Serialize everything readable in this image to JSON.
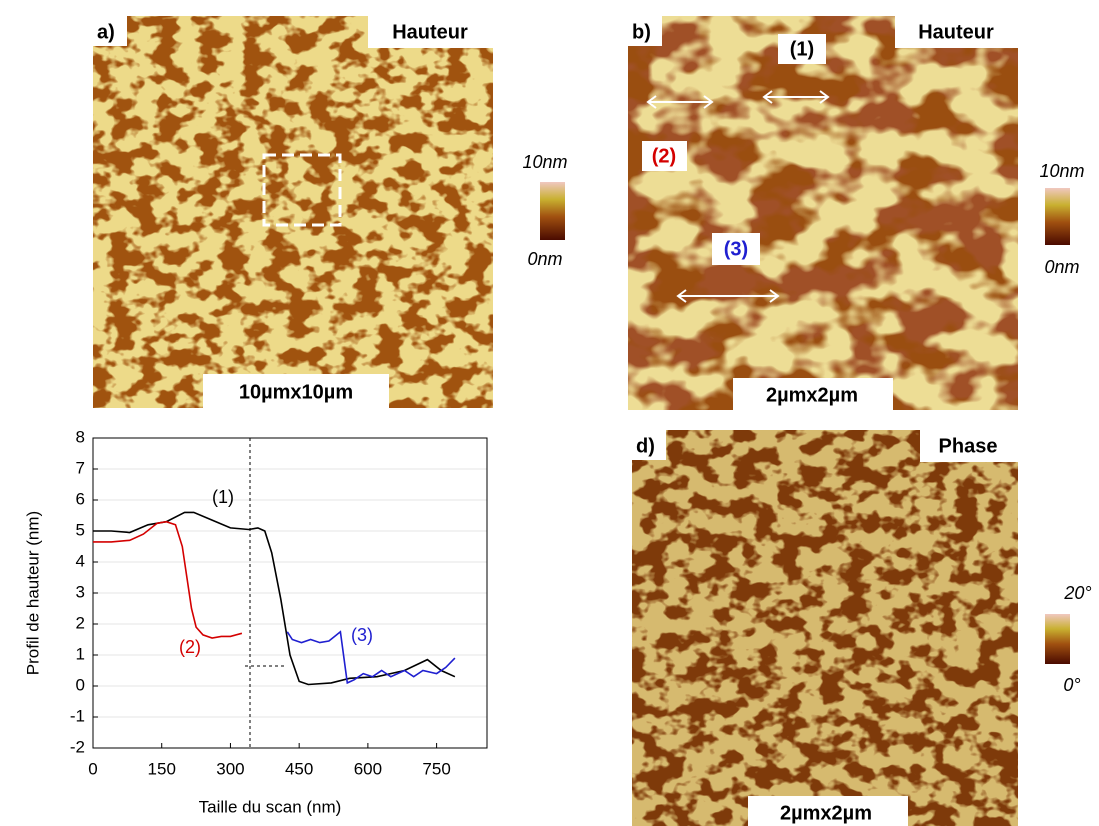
{
  "panels": {
    "a": {
      "label": "a)",
      "tag": "Hauteur",
      "scale": "10µmx10µm",
      "cbar_top": "10nm",
      "cbar_bottom": "0nm"
    },
    "b": {
      "label": "b)",
      "tag": "Hauteur",
      "scale": "2µmx2µm",
      "cbar_top": "10nm",
      "cbar_bottom": "0nm",
      "markers": [
        "(1)",
        "(2)",
        "(3)"
      ]
    },
    "d": {
      "label": "d)",
      "tag": "Phase",
      "scale": "2µmx2µm",
      "cbar_top": "20°",
      "cbar_bottom": "0°"
    }
  },
  "chart_data": {
    "type": "line",
    "x_label": "Taille du scan (nm)",
    "y_label": "Profil de hauteur (nm)",
    "xlim": [
      0,
      860
    ],
    "ylim": [
      -2,
      8
    ],
    "xticks": [
      0,
      150,
      300,
      450,
      600,
      750
    ],
    "yticks": [
      -2,
      -1,
      0,
      1,
      2,
      3,
      4,
      5,
      6,
      7,
      8
    ],
    "grid": true,
    "series": [
      {
        "label": "(1)",
        "color": "#000000",
        "x": [
          0,
          40,
          80,
          120,
          160,
          200,
          220,
          260,
          300,
          340,
          360,
          375,
          390,
          410,
          430,
          450,
          470,
          520,
          560,
          620,
          680,
          730,
          760,
          790
        ],
        "values": [
          5.0,
          5.0,
          4.95,
          5.2,
          5.3,
          5.6,
          5.6,
          5.35,
          5.1,
          5.05,
          5.1,
          5.0,
          4.3,
          2.8,
          1.0,
          0.15,
          0.05,
          0.1,
          0.25,
          0.3,
          0.5,
          0.85,
          0.5,
          0.3
        ]
      },
      {
        "label": "(2)",
        "color": "#d40000",
        "x": [
          0,
          40,
          80,
          110,
          140,
          160,
          180,
          195,
          205,
          215,
          225,
          240,
          260,
          280,
          300,
          325
        ],
        "values": [
          4.65,
          4.65,
          4.7,
          4.9,
          5.25,
          5.3,
          5.2,
          4.5,
          3.5,
          2.5,
          1.9,
          1.65,
          1.55,
          1.6,
          1.6,
          1.7
        ]
      },
      {
        "label": "(3)",
        "color": "#1f1fd0",
        "x": [
          424,
          435,
          455,
          475,
          495,
          515,
          540,
          555,
          570,
          590,
          610,
          630,
          650,
          680,
          700,
          720,
          750,
          770,
          790
        ],
        "values": [
          1.75,
          1.5,
          1.4,
          1.5,
          1.4,
          1.45,
          1.75,
          0.1,
          0.2,
          0.4,
          0.3,
          0.5,
          0.3,
          0.5,
          0.3,
          0.5,
          0.4,
          0.6,
          0.9
        ]
      }
    ]
  }
}
